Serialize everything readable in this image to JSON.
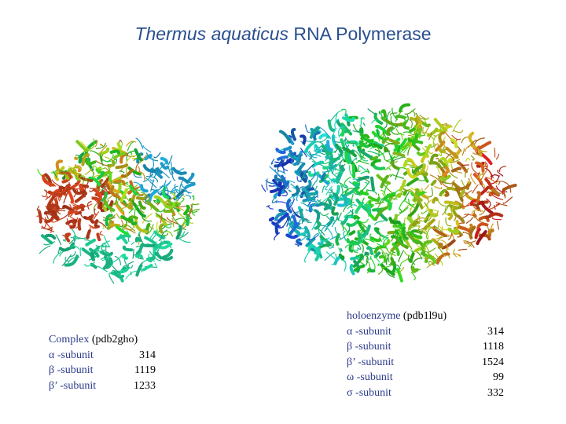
{
  "header": {
    "title_italic": "Thermus aquaticus",
    "title_rest": "RNA Polymerase"
  },
  "left_block": {
    "name": "Complex",
    "id": "(pdb2gho)",
    "rows": [
      [
        "α -subunit",
        314
      ],
      [
        "β -subunit",
        1119
      ],
      [
        "β’ -subunit",
        1233
      ]
    ]
  },
  "right_block": {
    "name": "holoenzyme",
    "id": "(pdb1l9u)",
    "rows": [
      [
        "α -subunit",
        314
      ],
      [
        "β -subunit",
        1118
      ],
      [
        "β’ -subunit",
        1524
      ],
      [
        "ω  -subunit",
        99
      ],
      [
        "σ  -subunit",
        332
      ]
    ]
  }
}
